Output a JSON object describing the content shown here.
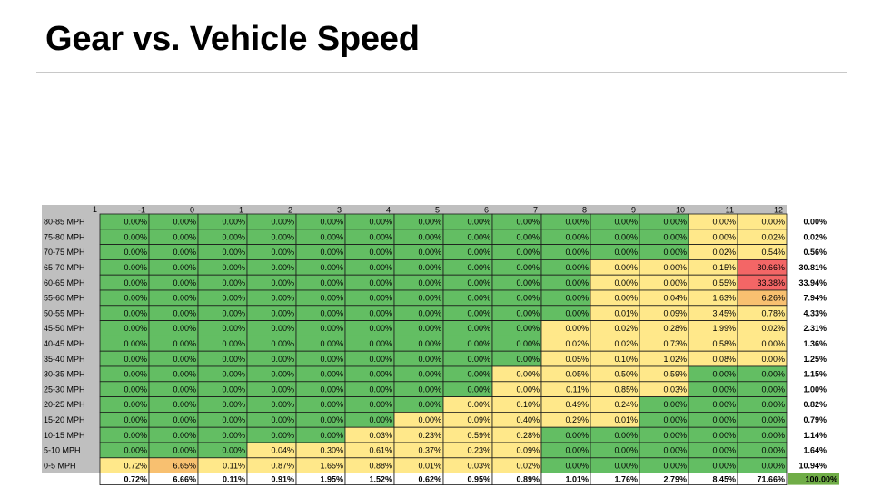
{
  "page": {
    "title": "Gear vs. Vehicle Speed"
  },
  "colors": {
    "green": "#63be63",
    "yellow": "#ffe88a",
    "orange": "#f8c070",
    "red": "#f36666",
    "header_gray": "#bfbfbf",
    "total_green": "#70ad47"
  },
  "chart_data": {
    "type": "heatmap",
    "corner_label": "1",
    "columns": [
      "-1",
      "0",
      "1",
      "2",
      "3",
      "4",
      "5",
      "6",
      "7",
      "8",
      "9",
      "10",
      "11",
      "12"
    ],
    "rows": [
      "80-85 MPH",
      "75-80 MPH",
      "70-75 MPH",
      "65-70 MPH",
      "60-65 MPH",
      "55-60 MPH",
      "50-55 MPH",
      "45-50 MPH",
      "40-45 MPH",
      "35-40 MPH",
      "30-35 MPH",
      "25-30 MPH",
      "20-25 MPH",
      "15-20 MPH",
      "10-15 MPH",
      "5-10 MPH",
      "0-5 MPH"
    ],
    "values": [
      [
        "0.00%",
        "0.00%",
        "0.00%",
        "0.00%",
        "0.00%",
        "0.00%",
        "0.00%",
        "0.00%",
        "0.00%",
        "0.00%",
        "0.00%",
        "0.00%",
        "0.00%",
        "0.00%"
      ],
      [
        "0.00%",
        "0.00%",
        "0.00%",
        "0.00%",
        "0.00%",
        "0.00%",
        "0.00%",
        "0.00%",
        "0.00%",
        "0.00%",
        "0.00%",
        "0.00%",
        "0.00%",
        "0.02%"
      ],
      [
        "0.00%",
        "0.00%",
        "0.00%",
        "0.00%",
        "0.00%",
        "0.00%",
        "0.00%",
        "0.00%",
        "0.00%",
        "0.00%",
        "0.00%",
        "0.00%",
        "0.02%",
        "0.54%"
      ],
      [
        "0.00%",
        "0.00%",
        "0.00%",
        "0.00%",
        "0.00%",
        "0.00%",
        "0.00%",
        "0.00%",
        "0.00%",
        "0.00%",
        "0.00%",
        "0.00%",
        "0.15%",
        "30.66%"
      ],
      [
        "0.00%",
        "0.00%",
        "0.00%",
        "0.00%",
        "0.00%",
        "0.00%",
        "0.00%",
        "0.00%",
        "0.00%",
        "0.00%",
        "0.00%",
        "0.00%",
        "0.55%",
        "33.38%"
      ],
      [
        "0.00%",
        "0.00%",
        "0.00%",
        "0.00%",
        "0.00%",
        "0.00%",
        "0.00%",
        "0.00%",
        "0.00%",
        "0.00%",
        "0.00%",
        "0.04%",
        "1.63%",
        "6.26%"
      ],
      [
        "0.00%",
        "0.00%",
        "0.00%",
        "0.00%",
        "0.00%",
        "0.00%",
        "0.00%",
        "0.00%",
        "0.00%",
        "0.00%",
        "0.01%",
        "0.09%",
        "3.45%",
        "0.78%"
      ],
      [
        "0.00%",
        "0.00%",
        "0.00%",
        "0.00%",
        "0.00%",
        "0.00%",
        "0.00%",
        "0.00%",
        "0.00%",
        "0.00%",
        "0.02%",
        "0.28%",
        "1.99%",
        "0.02%"
      ],
      [
        "0.00%",
        "0.00%",
        "0.00%",
        "0.00%",
        "0.00%",
        "0.00%",
        "0.00%",
        "0.00%",
        "0.00%",
        "0.02%",
        "0.02%",
        "0.73%",
        "0.58%",
        "0.00%"
      ],
      [
        "0.00%",
        "0.00%",
        "0.00%",
        "0.00%",
        "0.00%",
        "0.00%",
        "0.00%",
        "0.00%",
        "0.00%",
        "0.05%",
        "0.10%",
        "1.02%",
        "0.08%",
        "0.00%"
      ],
      [
        "0.00%",
        "0.00%",
        "0.00%",
        "0.00%",
        "0.00%",
        "0.00%",
        "0.00%",
        "0.00%",
        "0.00%",
        "0.05%",
        "0.50%",
        "0.59%",
        "0.00%",
        "0.00%"
      ],
      [
        "0.00%",
        "0.00%",
        "0.00%",
        "0.00%",
        "0.00%",
        "0.00%",
        "0.00%",
        "0.00%",
        "0.00%",
        "0.11%",
        "0.85%",
        "0.03%",
        "0.00%",
        "0.00%"
      ],
      [
        "0.00%",
        "0.00%",
        "0.00%",
        "0.00%",
        "0.00%",
        "0.00%",
        "0.00%",
        "0.00%",
        "0.10%",
        "0.49%",
        "0.24%",
        "0.00%",
        "0.00%",
        "0.00%"
      ],
      [
        "0.00%",
        "0.00%",
        "0.00%",
        "0.00%",
        "0.00%",
        "0.00%",
        "0.00%",
        "0.09%",
        "0.40%",
        "0.29%",
        "0.01%",
        "0.00%",
        "0.00%",
        "0.00%"
      ],
      [
        "0.00%",
        "0.00%",
        "0.00%",
        "0.00%",
        "0.00%",
        "0.03%",
        "0.23%",
        "0.59%",
        "0.28%",
        "0.00%",
        "0.00%",
        "0.00%",
        "0.00%",
        "0.00%"
      ],
      [
        "0.00%",
        "0.00%",
        "0.00%",
        "0.04%",
        "0.30%",
        "0.61%",
        "0.37%",
        "0.23%",
        "0.09%",
        "0.00%",
        "0.00%",
        "0.00%",
        "0.00%",
        "0.00%"
      ],
      [
        "0.72%",
        "6.65%",
        "0.11%",
        "0.87%",
        "1.65%",
        "0.88%",
        "0.01%",
        "0.03%",
        "0.02%",
        "0.00%",
        "0.00%",
        "0.00%",
        "0.00%",
        "0.00%"
      ]
    ],
    "cell_colors": [
      "GGGGGGGGGGGGYY",
      "GGGGGGGGGGGGYY",
      "GGGGGGGGGGGGYY",
      "GGGGGGGGGGYYYR",
      "GGGGGGGGGGYYYR",
      "GGGGGGGGGGYYYO",
      "GGGGGGGGGGYYYY",
      "GGGGGGGGGYYYYY",
      "GGGGGGGGGYYYYY",
      "GGGGGGGGGYYYYY",
      "GGGGGGGGYYYYGG",
      "GGGGGGGGYYYYGG",
      "GGGGGGGYYYYGGG",
      "GGGGGGYYYYYGGG",
      "GGGGGYYYYGGGGG",
      "GGGYYYYYYGGGGG",
      "YOYYYYYYYGGGGG"
    ],
    "row_totals": [
      "0.00%",
      "0.02%",
      "0.56%",
      "30.81%",
      "33.94%",
      "7.94%",
      "4.33%",
      "2.31%",
      "1.36%",
      "1.25%",
      "1.15%",
      "1.00%",
      "0.82%",
      "0.79%",
      "1.14%",
      "1.64%",
      "10.94%"
    ],
    "column_totals": [
      "0.72%",
      "6.66%",
      "0.11%",
      "0.91%",
      "1.95%",
      "1.52%",
      "0.62%",
      "0.95%",
      "0.89%",
      "1.01%",
      "1.76%",
      "2.79%",
      "8.45%",
      "71.66%"
    ],
    "grand_total": "100.00%"
  }
}
